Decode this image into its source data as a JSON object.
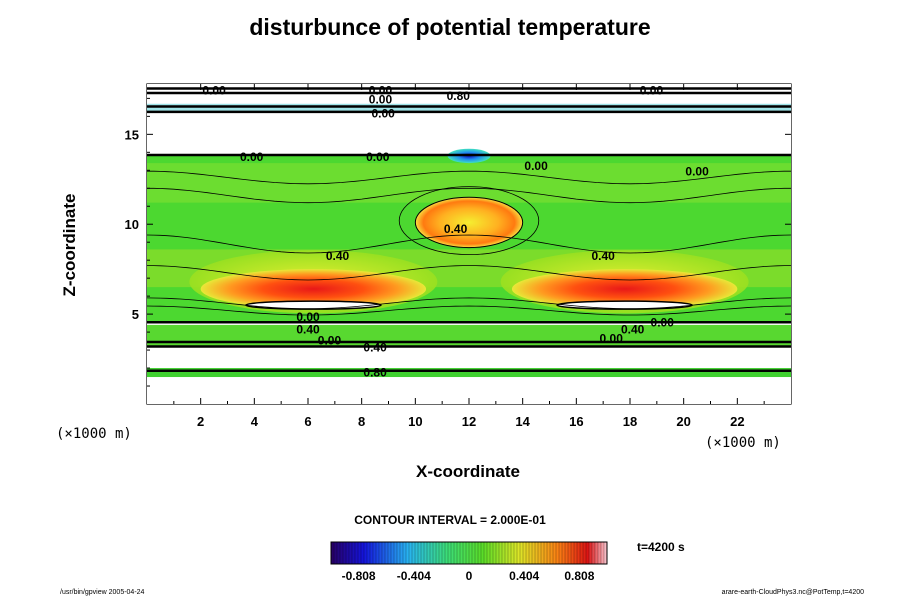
{
  "chart_data": {
    "type": "heatmap",
    "title": "disturbunce of potential temperature",
    "xlabel": "X-coordinate",
    "ylabel": "Z-coordinate",
    "x_unit": "(×1000 m)",
    "y_unit": "(×1000 m)",
    "xlim": [
      0,
      24
    ],
    "ylim": [
      0,
      17.8
    ],
    "xticks": [
      2,
      4,
      6,
      8,
      10,
      12,
      14,
      16,
      18,
      20,
      22
    ],
    "yticks": [
      5,
      10,
      15
    ],
    "grid": false,
    "contour_interval_label": "CONTOUR INTERVAL = 2.000E-01",
    "time_label": "t=4200 s",
    "colorbar": {
      "range": [
        -1.01,
        1.01
      ],
      "tick_values": [
        -0.808,
        -0.404,
        0,
        0.404,
        0.808
      ],
      "tick_labels": [
        "-0.808",
        "-0.404",
        "0",
        "0.404",
        "0.808"
      ]
    },
    "contour_labels": [
      {
        "x": 2.5,
        "z": 17.4,
        "text": "0.00"
      },
      {
        "x": 8.7,
        "z": 17.4,
        "text": "0.00"
      },
      {
        "x": 8.7,
        "z": 16.9,
        "text": "0.00"
      },
      {
        "x": 11.6,
        "z": 17.1,
        "text": "0.80"
      },
      {
        "x": 18.8,
        "z": 17.4,
        "text": "0.00"
      },
      {
        "x": 8.8,
        "z": 16.1,
        "text": "0.00"
      },
      {
        "x": 3.9,
        "z": 13.7,
        "text": "0.00"
      },
      {
        "x": 8.6,
        "z": 13.7,
        "text": "0.00"
      },
      {
        "x": 14.5,
        "z": 13.2,
        "text": "0.00"
      },
      {
        "x": 20.5,
        "z": 12.9,
        "text": "0.00"
      },
      {
        "x": 11.5,
        "z": 9.7,
        "text": "0.40"
      },
      {
        "x": 7.1,
        "z": 8.2,
        "text": "0.40"
      },
      {
        "x": 17.0,
        "z": 8.2,
        "text": "0.40"
      },
      {
        "x": 6.0,
        "z": 4.8,
        "text": "0.00"
      },
      {
        "x": 6.0,
        "z": 4.1,
        "text": "0.40"
      },
      {
        "x": 6.8,
        "z": 3.5,
        "text": "0.00"
      },
      {
        "x": 8.5,
        "z": 3.1,
        "text": "0.40"
      },
      {
        "x": 18.1,
        "z": 4.1,
        "text": "0.40"
      },
      {
        "x": 19.2,
        "z": 4.5,
        "text": "0.00"
      },
      {
        "x": 17.3,
        "z": 3.6,
        "text": "0.00"
      },
      {
        "x": 8.5,
        "z": 1.7,
        "text": "0.80"
      }
    ],
    "features": [
      {
        "x": 12,
        "z": 10.1,
        "rx": 2.0,
        "rz": 1.4,
        "value": 0.55,
        "kind": "warm dome"
      },
      {
        "x": 6.2,
        "z": 6.4,
        "rx": 4.2,
        "rz": 1.1,
        "value": 0.85,
        "kind": "warm band"
      },
      {
        "x": 17.8,
        "z": 6.4,
        "rx": 4.2,
        "rz": 1.1,
        "value": 0.85,
        "kind": "warm band"
      },
      {
        "x": 12,
        "z": 13.8,
        "rx": 0.8,
        "rz": 0.4,
        "value": -0.6,
        "kind": "cold spot"
      }
    ]
  },
  "footer": {
    "left": "/usr/bin/gpview 2005-04-24",
    "right": "arare-earth-CloudPhys3.nc@PotTemp,t=4200"
  }
}
